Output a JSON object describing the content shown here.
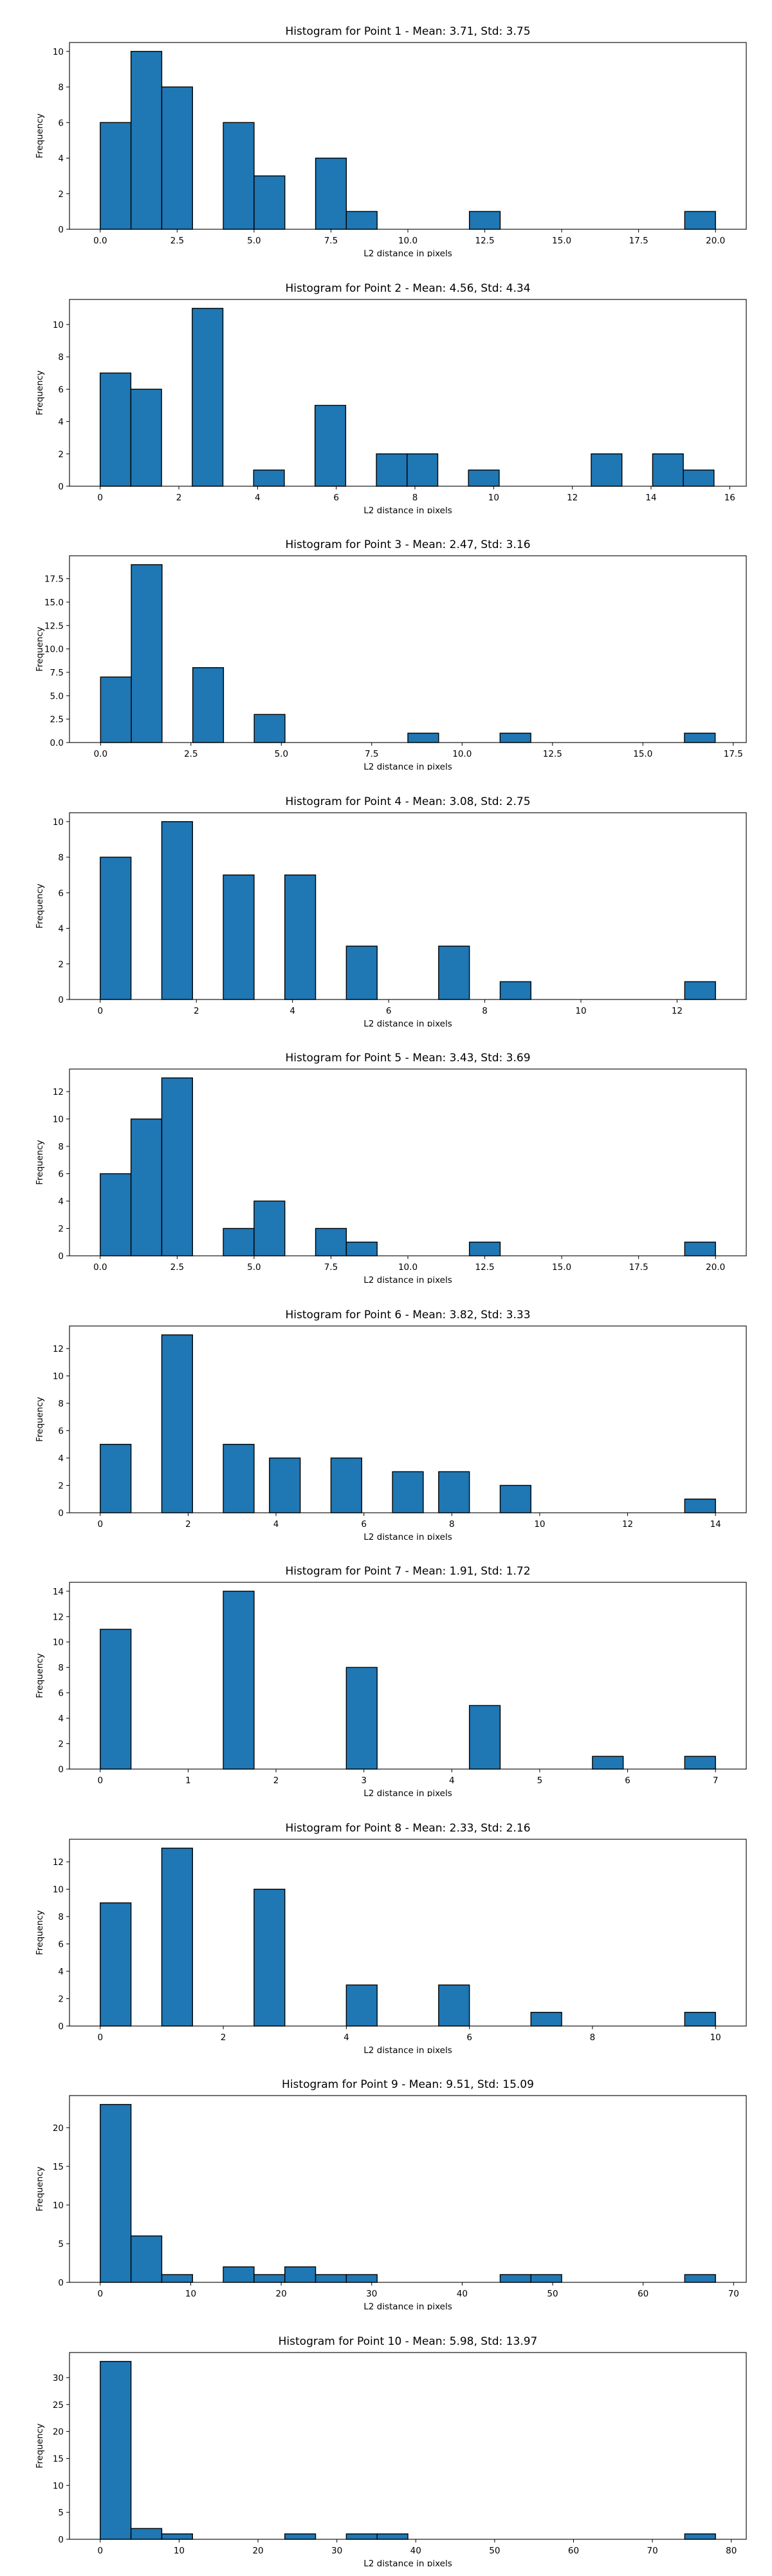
{
  "colors": {
    "bar_fill": "#1f77b4",
    "bar_edge": "#000000",
    "axis": "#000000",
    "background": "#ffffff"
  },
  "chart_data": [
    {
      "type": "bar",
      "title": "Histogram for Point 1 - Mean: 3.71, Std: 3.75",
      "xlabel": "L2 distance in pixels",
      "ylabel": "Frequency",
      "xlim": [
        -1.0,
        21.0
      ],
      "ylim": [
        0,
        10.5
      ],
      "xticks": [
        "0.0",
        "2.5",
        "5.0",
        "7.5",
        "10.0",
        "12.5",
        "15.0",
        "17.5",
        "20.0"
      ],
      "yticks": [
        "0",
        "2",
        "4",
        "6",
        "8",
        "10"
      ],
      "bins": [
        [
          0.0,
          1.0,
          6
        ],
        [
          1.0,
          2.0,
          10
        ],
        [
          2.0,
          3.0,
          8
        ],
        [
          4.0,
          5.0,
          6
        ],
        [
          5.0,
          6.0,
          3
        ],
        [
          7.0,
          8.0,
          4
        ],
        [
          8.0,
          9.0,
          1
        ],
        [
          12.0,
          13.0,
          1
        ],
        [
          19.0,
          20.0,
          1
        ]
      ],
      "grid": false
    },
    {
      "type": "bar",
      "title": "Histogram for Point 2 - Mean: 4.56, Std: 4.34",
      "xlabel": "L2 distance in pixels",
      "ylabel": "Frequency",
      "xlim": [
        -0.78,
        16.42
      ],
      "ylim": [
        0,
        11.55
      ],
      "xticks": [
        "0",
        "2",
        "4",
        "6",
        "8",
        "10",
        "12",
        "14",
        "16"
      ],
      "yticks": [
        "0",
        "2",
        "4",
        "6",
        "8",
        "10"
      ],
      "bins": [
        [
          0.0,
          0.78,
          7
        ],
        [
          0.78,
          1.56,
          6
        ],
        [
          2.34,
          3.12,
          11
        ],
        [
          3.9,
          4.68,
          1
        ],
        [
          5.46,
          6.24,
          5
        ],
        [
          7.02,
          7.8,
          2
        ],
        [
          7.8,
          8.58,
          2
        ],
        [
          9.36,
          10.14,
          1
        ],
        [
          12.48,
          13.26,
          2
        ],
        [
          14.04,
          14.82,
          2
        ],
        [
          14.82,
          15.6,
          1
        ]
      ],
      "grid": false
    },
    {
      "type": "bar",
      "title": "Histogram for Point 3 - Mean: 2.47, Std: 3.16",
      "xlabel": "L2 distance in pixels",
      "ylabel": "Frequency",
      "xlim": [
        -0.86,
        17.86
      ],
      "ylim": [
        0,
        19.95
      ],
      "xticks": [
        "0.0",
        "2.5",
        "5.0",
        "7.5",
        "10.0",
        "12.5",
        "15.0",
        "17.5"
      ],
      "yticks": [
        "0.0",
        "2.5",
        "5.0",
        "7.5",
        "10.0",
        "12.5",
        "15.0",
        "17.5"
      ],
      "bins": [
        [
          0.0,
          0.85,
          7
        ],
        [
          0.85,
          1.7,
          19
        ],
        [
          2.55,
          3.4,
          8
        ],
        [
          4.25,
          5.1,
          3
        ],
        [
          8.5,
          9.35,
          1
        ],
        [
          11.05,
          11.9,
          1
        ],
        [
          16.15,
          17.0,
          1
        ]
      ],
      "grid": false
    },
    {
      "type": "bar",
      "title": "Histogram for Point 4 - Mean: 3.08, Std: 2.75",
      "xlabel": "L2 distance in pixels",
      "ylabel": "Frequency",
      "xlim": [
        -0.64,
        13.44
      ],
      "ylim": [
        0,
        10.5
      ],
      "xticks": [
        "0",
        "2",
        "4",
        "6",
        "8",
        "10",
        "12"
      ],
      "yticks": [
        "0",
        "2",
        "4",
        "6",
        "8",
        "10"
      ],
      "bins": [
        [
          0.0,
          0.64,
          8
        ],
        [
          1.28,
          1.92,
          10
        ],
        [
          2.56,
          3.2,
          7
        ],
        [
          3.84,
          4.48,
          7
        ],
        [
          5.12,
          5.76,
          3
        ],
        [
          7.04,
          7.68,
          3
        ],
        [
          8.32,
          8.96,
          1
        ],
        [
          12.16,
          12.8,
          1
        ]
      ],
      "grid": false
    },
    {
      "type": "bar",
      "title": "Histogram for Point 5 - Mean: 3.43, Std: 3.69",
      "xlabel": "L2 distance in pixels",
      "ylabel": "Frequency",
      "xlim": [
        -1.0,
        21.0
      ],
      "ylim": [
        0,
        13.65
      ],
      "xticks": [
        "0.0",
        "2.5",
        "5.0",
        "7.5",
        "10.0",
        "12.5",
        "15.0",
        "17.5",
        "20.0"
      ],
      "yticks": [
        "0",
        "2",
        "4",
        "6",
        "8",
        "10",
        "12"
      ],
      "bins": [
        [
          0.0,
          1.0,
          6
        ],
        [
          1.0,
          2.0,
          10
        ],
        [
          2.0,
          3.0,
          13
        ],
        [
          4.0,
          5.0,
          2
        ],
        [
          5.0,
          6.0,
          4
        ],
        [
          7.0,
          8.0,
          2
        ],
        [
          8.0,
          9.0,
          1
        ],
        [
          12.0,
          13.0,
          1
        ],
        [
          19.0,
          20.0,
          1
        ]
      ],
      "grid": false
    },
    {
      "type": "bar",
      "title": "Histogram for Point 6 - Mean: 3.82, Std: 3.33",
      "xlabel": "L2 distance in pixels",
      "ylabel": "Frequency",
      "xlim": [
        -0.7,
        14.7
      ],
      "ylim": [
        0,
        13.65
      ],
      "xticks": [
        "0",
        "2",
        "4",
        "6",
        "8",
        "10",
        "12",
        "14"
      ],
      "yticks": [
        "0",
        "2",
        "4",
        "6",
        "8",
        "10",
        "12"
      ],
      "bins": [
        [
          0.0,
          0.7,
          5
        ],
        [
          1.4,
          2.1,
          13
        ],
        [
          2.8,
          3.5,
          5
        ],
        [
          3.85,
          4.55,
          4
        ],
        [
          5.25,
          5.95,
          4
        ],
        [
          6.65,
          7.35,
          3
        ],
        [
          7.7,
          8.4,
          3
        ],
        [
          9.1,
          9.8,
          2
        ],
        [
          13.3,
          14.0,
          1
        ]
      ],
      "grid": false
    },
    {
      "type": "bar",
      "title": "Histogram for Point 7 - Mean: 1.91, Std: 1.72",
      "xlabel": "L2 distance in pixels",
      "ylabel": "Frequency",
      "xlim": [
        -0.35,
        7.35
      ],
      "ylim": [
        0,
        14.7
      ],
      "xticks": [
        "0",
        "1",
        "2",
        "3",
        "4",
        "5",
        "6",
        "7"
      ],
      "yticks": [
        "0",
        "2",
        "4",
        "6",
        "8",
        "10",
        "12",
        "14"
      ],
      "bins": [
        [
          0.0,
          0.35,
          11
        ],
        [
          1.4,
          1.75,
          14
        ],
        [
          2.8,
          3.15,
          8
        ],
        [
          4.2,
          4.55,
          5
        ],
        [
          5.6,
          5.95,
          1
        ],
        [
          6.65,
          7.0,
          1
        ]
      ],
      "grid": false
    },
    {
      "type": "bar",
      "title": "Histogram for Point 8 - Mean: 2.33, Std: 2.16",
      "xlabel": "L2 distance in pixels",
      "ylabel": "Frequency",
      "xlim": [
        -0.5,
        10.5
      ],
      "ylim": [
        0,
        13.65
      ],
      "xticks": [
        "0",
        "2",
        "4",
        "6",
        "8",
        "10"
      ],
      "yticks": [
        "0",
        "2",
        "4",
        "6",
        "8",
        "10",
        "12"
      ],
      "bins": [
        [
          0.0,
          0.5,
          9
        ],
        [
          1.0,
          1.5,
          13
        ],
        [
          2.5,
          3.0,
          10
        ],
        [
          4.0,
          4.5,
          3
        ],
        [
          5.5,
          6.0,
          3
        ],
        [
          7.0,
          7.5,
          1
        ],
        [
          9.5,
          10.0,
          1
        ]
      ],
      "grid": false
    },
    {
      "type": "bar",
      "title": "Histogram for Point 9 - Mean: 9.51, Std: 15.09",
      "xlabel": "L2 distance in pixels",
      "ylabel": "Frequency",
      "xlim": [
        -3.4,
        71.4
      ],
      "ylim": [
        0,
        24.15
      ],
      "xticks": [
        "0",
        "10",
        "20",
        "30",
        "40",
        "50",
        "60",
        "70"
      ],
      "yticks": [
        "0",
        "5",
        "10",
        "15",
        "20"
      ],
      "bins": [
        [
          0.0,
          3.4,
          23
        ],
        [
          3.4,
          6.8,
          6
        ],
        [
          6.8,
          10.2,
          1
        ],
        [
          13.6,
          17.0,
          2
        ],
        [
          17.0,
          20.4,
          1
        ],
        [
          20.4,
          23.8,
          2
        ],
        [
          23.8,
          27.2,
          1
        ],
        [
          27.2,
          30.6,
          1
        ],
        [
          44.2,
          47.6,
          1
        ],
        [
          47.6,
          51.0,
          1
        ],
        [
          64.6,
          68.0,
          1
        ]
      ],
      "grid": false
    },
    {
      "type": "bar",
      "title": "Histogram for Point 10 - Mean: 5.98, Std: 13.97",
      "xlabel": "L2 distance in pixels",
      "ylabel": "Frequency",
      "xlim": [
        -3.9,
        81.9
      ],
      "ylim": [
        0,
        34.65
      ],
      "xticks": [
        "0",
        "10",
        "20",
        "30",
        "40",
        "50",
        "60",
        "70",
        "80"
      ],
      "yticks": [
        "0",
        "5",
        "10",
        "15",
        "20",
        "25",
        "30"
      ],
      "bins": [
        [
          0.0,
          3.9,
          33
        ],
        [
          3.9,
          7.8,
          2
        ],
        [
          7.8,
          11.7,
          1
        ],
        [
          23.4,
          27.3,
          1
        ],
        [
          31.2,
          35.1,
          1
        ],
        [
          35.1,
          39.0,
          1
        ],
        [
          74.1,
          78.0,
          1
        ]
      ],
      "grid": false
    }
  ]
}
